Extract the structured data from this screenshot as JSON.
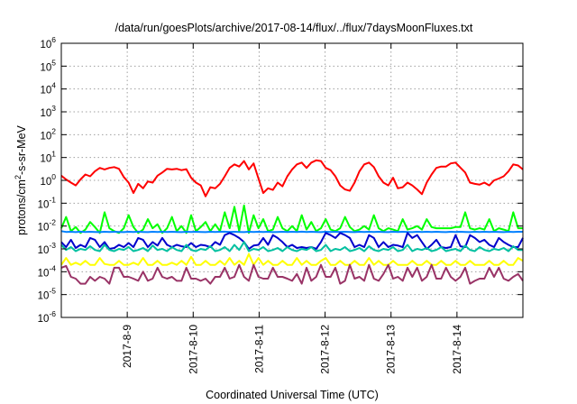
{
  "chart_data": {
    "type": "line",
    "title": "/data/run/goesPlots/archive/2017-08-14/flux/../flux/7daysMoonFluxes.txt",
    "xlabel": "Coordinated Universal Time (UTC)",
    "ylabel": {
      "base": "protons/cm",
      "sup": "2",
      "rest": "-s-sr-MeV"
    },
    "yscale": "log",
    "ylim": [
      1e-06,
      1000000.0
    ],
    "y_ticks": [
      {
        "mant": "10",
        "exp": "-6"
      },
      {
        "mant": "10",
        "exp": "-5"
      },
      {
        "mant": "10",
        "exp": "-4"
      },
      {
        "mant": "10",
        "exp": "-3"
      },
      {
        "mant": "10",
        "exp": "-2"
      },
      {
        "mant": "10",
        "exp": "-1"
      },
      {
        "mant": "10",
        "exp": "0"
      },
      {
        "mant": "10",
        "exp": "1"
      },
      {
        "mant": "10",
        "exp": "2"
      },
      {
        "mant": "10",
        "exp": "3"
      },
      {
        "mant": "10",
        "exp": "4"
      },
      {
        "mant": "10",
        "exp": "5"
      },
      {
        "mant": "10",
        "exp": "6"
      }
    ],
    "xlim": [
      "2017-08-08 00:00",
      "2017-08-15 00:00"
    ],
    "x_ticks": [
      "2017-8-9",
      "2017-8-10",
      "2017-8-11",
      "2017-8-12",
      "2017-8-13",
      "2017-8-14"
    ],
    "grid": true,
    "series": [
      {
        "color": "#ff0000",
        "values": [
          1.6,
          1.1,
          0.8,
          0.6,
          1.1,
          1.8,
          1.5,
          2.5,
          3.5,
          3.0,
          3.5,
          3.8,
          3.2,
          1.4,
          0.8,
          0.28,
          0.7,
          0.45,
          0.9,
          0.8,
          1.6,
          2.2,
          3.2,
          3.0,
          3.2,
          2.8,
          3.1,
          1.3,
          0.8,
          0.6,
          0.2,
          0.5,
          0.45,
          0.7,
          1.5,
          3.5,
          5.0,
          4.0,
          7.0,
          3.0,
          5.5,
          1.2,
          0.28,
          0.45,
          0.38,
          0.8,
          0.55,
          1.5,
          3.0,
          5.0,
          6.0,
          3.5,
          6.0,
          7.5,
          7.0,
          3.5,
          2.8,
          1.5,
          0.6,
          0.4,
          0.35,
          0.8,
          2.5,
          5.0,
          6.0,
          3.8,
          1.5,
          0.8,
          0.6,
          1.3,
          0.45,
          0.5,
          0.8,
          0.6,
          0.4,
          0.25,
          0.8,
          1.8,
          3.5,
          4.0,
          4.0,
          5.5,
          6.0,
          3.6,
          2.2,
          0.8,
          0.7,
          0.65,
          0.8,
          0.6,
          1.0,
          1.2,
          1.5,
          2.5,
          5.0,
          4.5,
          3.0
        ]
      },
      {
        "color": "#00ff00",
        "values": [
          0.008,
          0.025,
          0.006,
          0.009,
          0.005,
          0.007,
          0.015,
          0.009,
          0.005,
          0.04,
          0.008,
          0.006,
          0.005,
          0.008,
          0.03,
          0.009,
          0.005,
          0.007,
          0.02,
          0.008,
          0.012,
          0.005,
          0.008,
          0.025,
          0.006,
          0.01,
          0.005,
          0.03,
          0.006,
          0.009,
          0.015,
          0.006,
          0.012,
          0.006,
          0.04,
          0.008,
          0.07,
          0.006,
          0.08,
          0.005,
          0.03,
          0.008,
          0.02,
          0.006,
          0.007,
          0.025,
          0.008,
          0.006,
          0.01,
          0.006,
          0.03,
          0.007,
          0.015,
          0.006,
          0.008,
          0.02,
          0.007,
          0.006,
          0.008,
          0.025,
          0.009,
          0.006,
          0.007,
          0.01,
          0.007,
          0.03,
          0.008,
          0.006,
          0.008,
          0.007,
          0.006,
          0.02,
          0.007,
          0.008,
          0.01,
          0.007,
          0.02,
          0.009,
          0.008,
          0.008,
          0.008,
          0.008,
          0.009,
          0.009,
          0.04,
          0.008,
          0.007,
          0.008,
          0.007,
          0.02,
          0.006,
          0.008,
          0.007,
          0.006,
          0.04,
          0.008,
          0.008
        ]
      },
      {
        "color": "#0080ff",
        "values": [
          0.006,
          0.0055,
          0.0056,
          0.0054,
          0.0057,
          0.0055,
          0.0056,
          0.0055,
          0.0054,
          0.0056,
          0.0055,
          0.0056,
          0.0055,
          0.0054,
          0.0056,
          0.0055,
          0.0057,
          0.0055,
          0.0054,
          0.0056,
          0.0055,
          0.0056,
          0.0055,
          0.0056,
          0.0055,
          0.0054,
          0.0056,
          0.0055,
          0.0056,
          0.0055,
          0.0054,
          0.0056,
          0.0055,
          0.0056,
          0.0057,
          0.0055,
          0.0056,
          0.0055,
          0.0054,
          0.0056,
          0.0055,
          0.0056,
          0.0055,
          0.0056,
          0.0054,
          0.0055,
          0.0056,
          0.0055,
          0.0056,
          0.0055,
          0.0057,
          0.0055,
          0.0056,
          0.0055,
          0.0054,
          0.0056,
          0.0055,
          0.0056,
          0.0055,
          0.0056,
          0.0055,
          0.0054,
          0.0056,
          0.0055,
          0.0056,
          0.0055,
          0.0056,
          0.0055,
          0.0054,
          0.0056,
          0.0055,
          0.0056,
          0.0055,
          0.0054,
          0.0056,
          0.0055,
          0.0056,
          0.0055,
          0.0056,
          0.0055,
          0.0054,
          0.0056,
          0.0055,
          0.0056,
          0.0055,
          0.0054,
          0.0056,
          0.0055,
          0.0056,
          0.0055,
          0.0056,
          0.0055,
          0.0054,
          0.0056,
          0.0055,
          0.0056,
          0.0056
        ]
      },
      {
        "color": "#0000cc",
        "values": [
          0.002,
          0.0012,
          0.0025,
          0.0011,
          0.0015,
          0.0012,
          0.003,
          0.0025,
          0.0012,
          0.002,
          0.001,
          0.0011,
          0.0015,
          0.0012,
          0.0018,
          0.0012,
          0.003,
          0.0025,
          0.0012,
          0.002,
          0.0014,
          0.003,
          0.0015,
          0.0012,
          0.0015,
          0.0013,
          0.0012,
          0.0018,
          0.0012,
          0.0015,
          0.0014,
          0.0012,
          0.002,
          0.0015,
          0.004,
          0.005,
          0.004,
          0.003,
          0.002,
          0.001,
          0.0014,
          0.0015,
          0.003,
          0.0015,
          0.004,
          0.003,
          0.002,
          0.0012,
          0.0015,
          0.0011,
          0.0012,
          0.0011,
          0.0012,
          0.001,
          0.002,
          0.005,
          0.004,
          0.003,
          0.005,
          0.004,
          0.003,
          0.0012,
          0.0015,
          0.0012,
          0.004,
          0.003,
          0.0012,
          0.002,
          0.0012,
          0.0015,
          0.0014,
          0.0012,
          0.005,
          0.003,
          0.004,
          0.002,
          0.001,
          0.0015,
          0.0025,
          0.0012,
          0.0011,
          0.0012,
          0.004,
          0.0013,
          0.0012,
          0.004,
          0.003,
          0.002,
          0.0025,
          0.0015,
          0.0012,
          0.003,
          0.002,
          0.0015,
          0.0012,
          0.0012,
          0.003
        ]
      },
      {
        "color": "#00c0a0",
        "values": [
          0.0015,
          0.0009,
          0.0012,
          0.0008,
          0.001,
          0.0009,
          0.0013,
          0.0009,
          0.0008,
          0.0015,
          0.0009,
          0.0008,
          0.001,
          0.0009,
          0.0012,
          0.0008,
          0.0009,
          0.0011,
          0.0008,
          0.0014,
          0.0009,
          0.001,
          0.0008,
          0.0012,
          0.0009,
          0.0008,
          0.0015,
          0.0009,
          0.0008,
          0.001,
          0.0009,
          0.0013,
          0.0008,
          0.0009,
          0.0012,
          0.0008,
          0.0015,
          0.0009,
          0.002,
          0.0008,
          0.001,
          0.0009,
          0.0012,
          0.0008,
          0.0009,
          0.0011,
          0.0008,
          0.0012,
          0.0009,
          0.0008,
          0.001,
          0.0009,
          0.0012,
          0.0008,
          0.0009,
          0.0015,
          0.0008,
          0.001,
          0.0009,
          0.0012,
          0.0008,
          0.0009,
          0.0011,
          0.0008,
          0.0013,
          0.0009,
          0.0008,
          0.001,
          0.0009,
          0.0012,
          0.0008,
          0.0009,
          0.0015,
          0.0008,
          0.001,
          0.0009,
          0.0011,
          0.0008,
          0.0009,
          0.0012,
          0.0008,
          0.0009,
          0.001,
          0.0008,
          0.0014,
          0.0009,
          0.0008,
          0.0012,
          0.0009,
          0.0008,
          0.001,
          0.0009,
          0.0011,
          0.0008,
          0.0013,
          0.0009,
          0.0009
        ]
      },
      {
        "color": "#ffff00",
        "values": [
          0.0002,
          0.0004,
          0.0002,
          0.00025,
          0.0002,
          0.0003,
          0.0002,
          0.0002,
          0.0004,
          0.00022,
          0.0002,
          0.0002,
          0.0003,
          0.0002,
          0.0002,
          0.00025,
          0.0002,
          0.0004,
          0.0002,
          0.0002,
          0.0003,
          0.0002,
          0.0002,
          0.00025,
          0.0002,
          0.0003,
          0.0002,
          0.00045,
          0.0002,
          0.0002,
          0.0003,
          0.0002,
          0.0002,
          0.0003,
          0.0002,
          0.0004,
          0.0002,
          0.0003,
          0.0002,
          0.0006,
          0.0002,
          0.0004,
          0.0002,
          0.0003,
          0.0002,
          0.0002,
          0.0003,
          0.0002,
          0.0002,
          0.0004,
          0.0002,
          0.0003,
          0.0002,
          0.0002,
          0.0003,
          0.0004,
          0.0002,
          0.0002,
          0.0003,
          0.0002,
          0.0002,
          0.0003,
          0.0002,
          0.0002,
          0.0004,
          0.0002,
          0.0003,
          0.0002,
          0.0002,
          0.0003,
          0.0002,
          0.0002,
          0.0002,
          0.0003,
          0.0002,
          0.0002,
          0.0003,
          0.0002,
          0.0002,
          0.0003,
          0.0002,
          0.0002,
          0.0003,
          0.0002,
          0.0002,
          0.0003,
          0.0002,
          0.0002,
          0.0002,
          0.0003,
          0.0002,
          0.0002,
          0.0003,
          0.0002,
          0.0002,
          0.0004,
          0.0003
        ]
      },
      {
        "color": "#993366",
        "values": [
          0.00015,
          0.00018,
          6e-05,
          5e-05,
          3e-05,
          3e-05,
          6e-05,
          4e-05,
          6e-05,
          5e-05,
          3e-05,
          0.00015,
          0.00015,
          6e-05,
          6e-05,
          5e-05,
          4e-05,
          0.0001,
          4e-05,
          5e-05,
          0.00015,
          6e-05,
          5e-05,
          6e-05,
          4e-05,
          4e-05,
          0.00015,
          5e-05,
          5e-05,
          4e-05,
          5e-05,
          3e-05,
          6e-05,
          6e-05,
          0.00015,
          5e-05,
          6e-05,
          0.0002,
          6e-05,
          4e-05,
          0.0002,
          6e-05,
          5e-05,
          5e-05,
          0.00015,
          6e-05,
          6e-05,
          5e-05,
          4e-05,
          8e-05,
          3e-05,
          0.00015,
          4e-05,
          6e-05,
          0.0002,
          6e-05,
          6e-05,
          0.00015,
          3e-05,
          4e-05,
          0.0002,
          5e-05,
          6e-05,
          4e-05,
          0.0002,
          5e-05,
          4e-05,
          8e-05,
          0.0002,
          5e-05,
          6e-05,
          4e-05,
          0.00015,
          6e-05,
          0.00015,
          4e-05,
          6e-05,
          0.0002,
          5e-05,
          5e-05,
          0.00015,
          6e-05,
          4e-05,
          6e-05,
          0.00015,
          3e-05,
          4e-05,
          5e-05,
          5e-05,
          0.00015,
          6e-05,
          0.00015,
          5e-05,
          4e-05,
          6e-05,
          8e-05,
          4e-05
        ]
      }
    ]
  }
}
